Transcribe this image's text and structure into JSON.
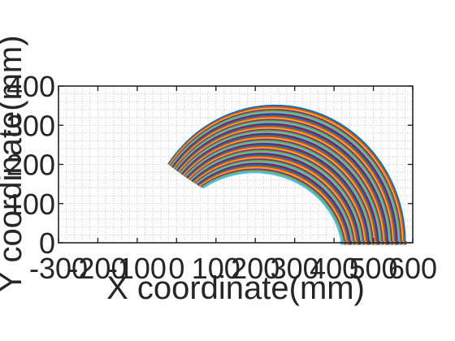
{
  "chart_data": {
    "type": "line",
    "title": "",
    "xlabel": "X coordinate(mm)",
    "ylabel": "Y coordinate(mm)",
    "xlim": [
      -300,
      600
    ],
    "ylim": [
      0,
      400
    ],
    "xticks": [
      -300,
      -200,
      -100,
      0,
      100,
      200,
      300,
      400,
      500,
      600
    ],
    "xtick_labels": [
      "-300",
      "-200",
      "-100",
      "0",
      "100",
      "200",
      "300",
      "400",
      "500",
      "600"
    ],
    "yticks": [
      0,
      100,
      200,
      300,
      400
    ],
    "ytick_labels": [
      "0",
      "100",
      "200",
      "300",
      "400"
    ],
    "grid": "on (minor, dotted)",
    "legend": "none",
    "series_count": 48,
    "series_style": "concentric arcs, one color per series from the default color cycle",
    "series_colors": [
      "#0072bd",
      "#d95319",
      "#edb120",
      "#7e2f8e",
      "#77ac30",
      "#4dbeee",
      "#a2142f"
    ],
    "arc_family": {
      "outer_arc": {
        "center": [
          250,
          0
        ],
        "radius_x": 330,
        "radius_y": 350,
        "x_start": 580,
        "x_end": -80
      },
      "inner_arc": {
        "center": [
          180,
          0
        ],
        "radius_x": 180,
        "radius_y": 180,
        "x_start": 360,
        "x_end": 0
      },
      "leftmost_end": [
        -80,
        200
      ],
      "lowest_left_end": [
        -70,
        140
      ],
      "right_endpoints_x_range": [
        420,
        580
      ],
      "right_endpoints_y": 0
    }
  }
}
